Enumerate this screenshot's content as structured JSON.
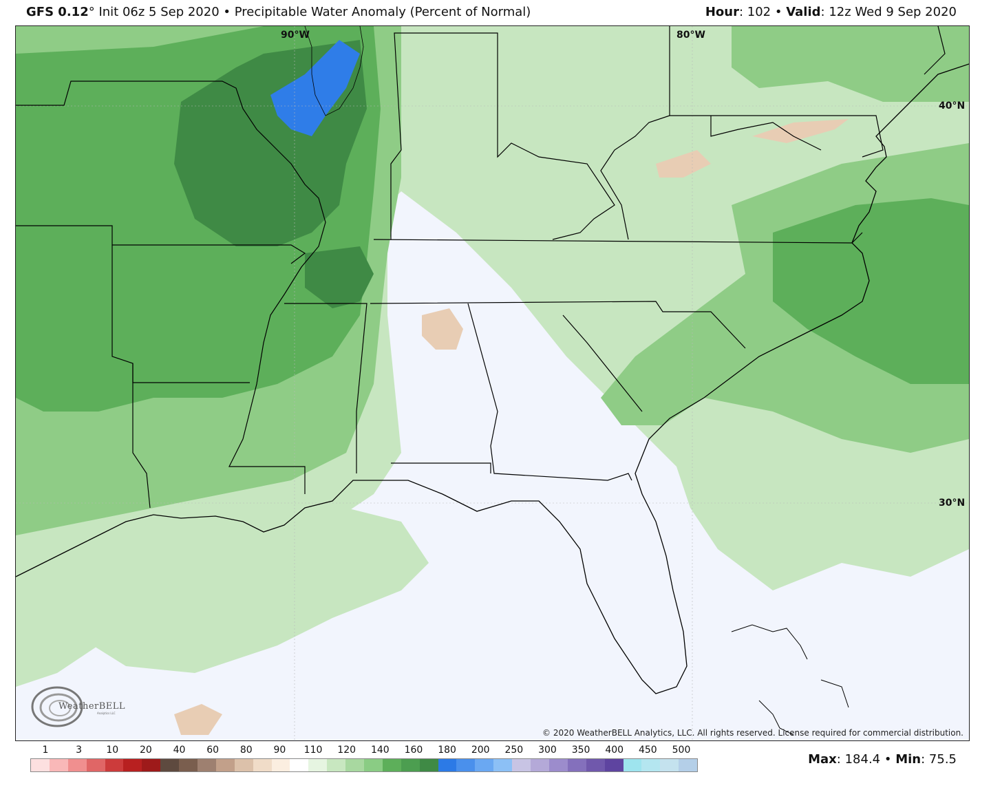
{
  "header": {
    "model": "GFS 0.12",
    "degree": "°",
    "init": "Init 06z 5 Sep 2020",
    "bullet": "•",
    "product": "Precipitable Water Anomaly (Percent of Normal)",
    "hour_label": "Hour",
    "hour_value": ": 102",
    "valid_label": "Valid",
    "valid_value": ": 12z Wed 9 Sep 2020"
  },
  "map": {
    "lon_labels": [
      "90°W",
      "80°W"
    ],
    "lat_labels": [
      "40°N",
      "30°N"
    ],
    "copyright": "© 2020 WeatherBELL Analytics, LLC. All rights reserved. License required for commercial distribution.",
    "logo_text": "WeatherBELL",
    "logo_sub": "Analytics LLC",
    "colors": {
      "below_normal": "#f2f5fd",
      "light_green": "#c7e6c0",
      "mid_green": "#8fcc86",
      "green": "#5daf5a",
      "dark_green": "#3f8a45",
      "blue": "#2f7de8",
      "tan": "#e8cdb4",
      "borders": "#000000"
    }
  },
  "legend": {
    "labels": [
      "1",
      "3",
      "10",
      "20",
      "40",
      "60",
      "80",
      "90",
      "110",
      "120",
      "140",
      "160",
      "180",
      "200",
      "250",
      "300",
      "350",
      "400",
      "450",
      "500"
    ],
    "colors": [
      "#fde0e0",
      "#f9b8b8",
      "#f08f8f",
      "#e06666",
      "#cc3b3b",
      "#b82020",
      "#9e1a1a",
      "#5e4a3f",
      "#7a5e4e",
      "#9e8070",
      "#c2a08a",
      "#dcc1aa",
      "#f0dcc8",
      "#fbeee0",
      "#ffffff",
      "#e6f5e1",
      "#c8e7c0",
      "#a8d8a0",
      "#8acc84",
      "#5daf5a",
      "#4c9e50",
      "#3f8a45",
      "#2c7ae6",
      "#4a90ec",
      "#6aa8f2",
      "#8cc0f6",
      "#c8c4e4",
      "#b4a9d8",
      "#9c8ccc",
      "#8470bc",
      "#7058ac",
      "#5e44a0",
      "#9ee4ee",
      "#b4e6f0",
      "#c4e2ee",
      "#b4cfe8"
    ]
  },
  "stats": {
    "max_label": "Max",
    "max_value": ": 184.4",
    "bullet": "•",
    "min_label": "Min",
    "min_value": ": 75.5"
  }
}
